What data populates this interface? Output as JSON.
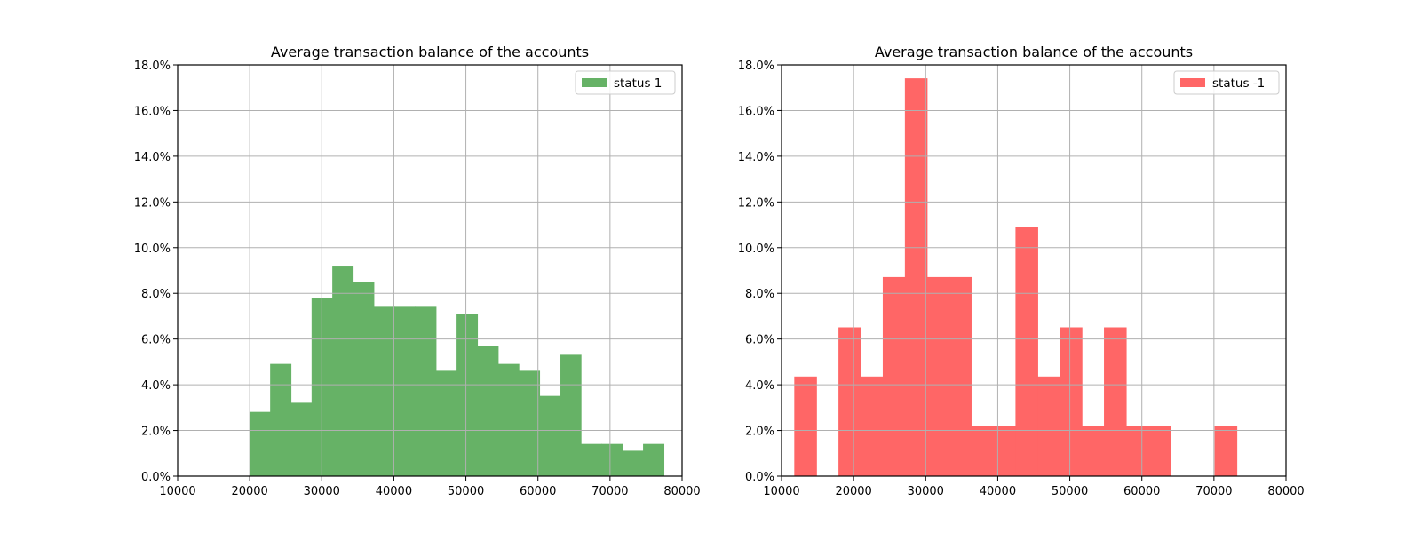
{
  "chart_data": [
    {
      "type": "bar",
      "subtype": "histogram",
      "title": "Average transaction balance of the accounts",
      "xlabel": "",
      "ylabel": "",
      "xlim": [
        10000,
        80000
      ],
      "ylim": [
        0,
        18
      ],
      "xticks": [
        "10000",
        "20000",
        "30000",
        "40000",
        "50000",
        "60000",
        "70000",
        "80000"
      ],
      "yticks": [
        "0.0%",
        "2.0%",
        "4.0%",
        "6.0%",
        "8.0%",
        "10.0%",
        "12.0%",
        "14.0%",
        "16.0%",
        "18.0%"
      ],
      "grid": true,
      "legend_position": "top-right",
      "series": [
        {
          "name": "status 1",
          "color": "#66b266",
          "bin_edges": [
            20000,
            22875,
            25750,
            28625,
            31500,
            34375,
            37250,
            40125,
            43000,
            45875,
            48750,
            51625,
            54500,
            57375,
            60250,
            63125,
            66000,
            68875,
            71750,
            74625,
            77500
          ],
          "values": [
            2.8,
            4.9,
            3.2,
            7.8,
            9.2,
            8.5,
            7.4,
            7.4,
            7.4,
            4.6,
            7.1,
            5.7,
            4.9,
            4.6,
            3.5,
            5.3,
            1.4,
            1.4,
            1.1,
            1.4
          ]
        }
      ]
    },
    {
      "type": "bar",
      "subtype": "histogram",
      "title": "Average transaction balance of the accounts",
      "xlabel": "",
      "ylabel": "",
      "xlim": [
        10000,
        80000
      ],
      "ylim": [
        0,
        18
      ],
      "xticks": [
        "10000",
        "20000",
        "30000",
        "40000",
        "50000",
        "60000",
        "70000",
        "80000"
      ],
      "yticks": [
        "0.0%",
        "2.0%",
        "4.0%",
        "6.0%",
        "8.0%",
        "10.0%",
        "12.0%",
        "14.0%",
        "16.0%",
        "18.0%"
      ],
      "grid": true,
      "legend_position": "top-right",
      "series": [
        {
          "name": "status -1",
          "color": "#ff6666",
          "bin_edges": [
            11800,
            14870,
            17940,
            21010,
            24080,
            27150,
            30220,
            33290,
            36360,
            39430,
            42500,
            45570,
            48640,
            51710,
            54780,
            57850,
            60920,
            63990,
            67060,
            70130,
            73200
          ],
          "values": [
            4.35,
            0,
            6.5,
            4.35,
            8.7,
            17.4,
            8.7,
            8.7,
            2.2,
            2.2,
            10.9,
            4.35,
            6.5,
            2.2,
            6.5,
            2.2,
            2.2,
            0,
            0,
            2.2
          ]
        }
      ]
    }
  ]
}
